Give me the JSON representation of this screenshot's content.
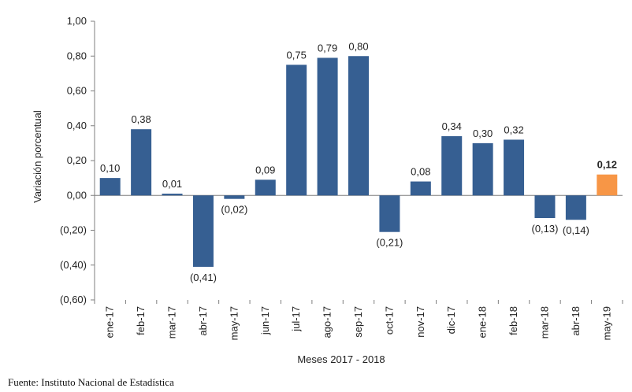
{
  "chart_data": {
    "type": "bar",
    "categories": [
      "ene-17",
      "feb-17",
      "mar-17",
      "abr-17",
      "may-17",
      "jun-17",
      "jul-17",
      "ago-17",
      "sep-17",
      "oct-17",
      "nov-17",
      "dic-17",
      "ene-18",
      "feb-18",
      "mar-18",
      "abr-18",
      "may-19"
    ],
    "values": [
      0.1,
      0.38,
      0.01,
      -0.41,
      -0.02,
      0.09,
      0.75,
      0.79,
      0.8,
      -0.21,
      0.08,
      0.34,
      0.3,
      0.32,
      -0.13,
      -0.14,
      0.12
    ],
    "value_labels": [
      "0,10",
      "0,38",
      "0,01",
      "(0,41)",
      "(0,02)",
      "0,09",
      "0,75",
      "0,79",
      "0,80",
      "(0,21)",
      "0,08",
      "0,34",
      "0,30",
      "0,32",
      "(0,13)",
      "(0,14)",
      "0,12"
    ],
    "highlight_index": 16,
    "ylim": [
      -0.6,
      1.0
    ],
    "yticks": [
      1.0,
      0.8,
      0.6,
      0.4,
      0.2,
      0.0,
      -0.2,
      -0.4,
      -0.6
    ],
    "ytick_labels": [
      "1,00",
      "0,80",
      "0,60",
      "0,40",
      "0,20",
      "0,00",
      "(0,20)",
      "(0,40)",
      "(0,60)"
    ],
    "ylabel": "Variación porcentual",
    "xlabel": "Meses 2017 - 2018",
    "grid": false,
    "colors": {
      "bar": "#365F92",
      "highlight": "#F79646",
      "axis": "#7f7f7f"
    }
  },
  "source": "Fuente: Instituto Nacional de Estadística"
}
